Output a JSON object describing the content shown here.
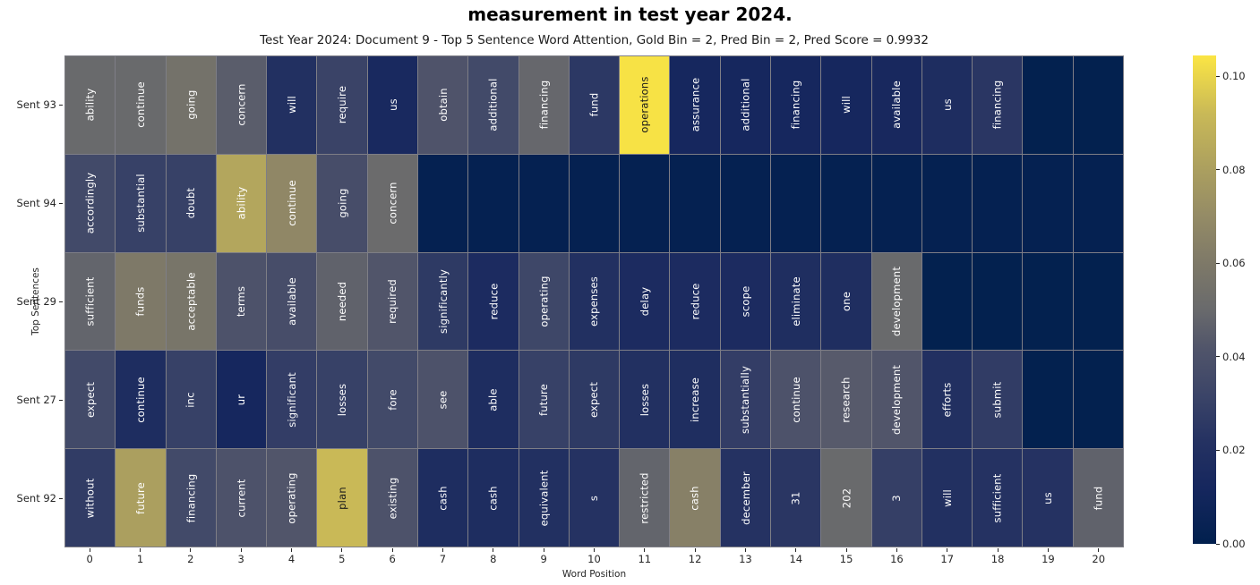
{
  "header": {
    "caption": "measurement in test year 2024.",
    "chart_title": "Test Year 2024: Document 9 - Top 5 Sentence Word Attention, Gold Bin = 2, Pred Bin = 2, Pred Score = 0.9932"
  },
  "chart_data": {
    "type": "heatmap",
    "title": "Test Year 2024: Document 9 - Top 5 Sentence Word Attention, Gold Bin = 2, Pred Bin = 2, Pred Score = 0.9932",
    "xlabel": "Word Position",
    "ylabel": "Top Sentences",
    "x_ticks": [
      "0",
      "1",
      "2",
      "3",
      "4",
      "5",
      "6",
      "7",
      "8",
      "9",
      "10",
      "11",
      "12",
      "13",
      "14",
      "15",
      "16",
      "17",
      "18",
      "19",
      "20"
    ],
    "y_tick_labels": [
      "Sent 93",
      "Sent 94",
      "Sent 29",
      "Sent 27",
      "Sent 92"
    ],
    "vmin": 0.0,
    "vmax": 0.105,
    "dark_text_threshold": 0.088,
    "grid_line_color": "#7e7e86",
    "colormap": {
      "name": "cividis",
      "stops": [
        [
          0.0,
          "#01204e"
        ],
        [
          0.012,
          "#16275e"
        ],
        [
          0.022,
          "#253262"
        ],
        [
          0.032,
          "#3c4568"
        ],
        [
          0.042,
          "#51556a"
        ],
        [
          0.05,
          "#696a6c"
        ],
        [
          0.06,
          "#7e7968"
        ],
        [
          0.07,
          "#948b66"
        ],
        [
          0.08,
          "#ab9f5f"
        ],
        [
          0.092,
          "#c9b957"
        ],
        [
          0.105,
          "#fbe544"
        ]
      ]
    },
    "colorbar": {
      "vmax_display": 0.1044,
      "ticks": [
        0.0,
        0.02,
        0.04,
        0.06,
        0.08,
        0.1
      ],
      "tick_labels": [
        "0.00",
        "0.02",
        "0.04",
        "0.06",
        "0.08",
        "0.10"
      ]
    },
    "rows": [
      {
        "label": "Sent 93",
        "cells": [
          {
            "w": "ability",
            "v": 0.05
          },
          {
            "w": "continue",
            "v": 0.05
          },
          {
            "w": "going",
            "v": 0.055
          },
          {
            "w": "concern",
            "v": 0.045
          },
          {
            "w": "will",
            "v": 0.02
          },
          {
            "w": "require",
            "v": 0.031
          },
          {
            "w": "us",
            "v": 0.014
          },
          {
            "w": "obtain",
            "v": 0.041
          },
          {
            "w": "additional",
            "v": 0.035
          },
          {
            "w": "financing",
            "v": 0.049
          },
          {
            "w": "fund",
            "v": 0.025
          },
          {
            "w": "operations",
            "v": 0.104
          },
          {
            "w": "assurance",
            "v": 0.012
          },
          {
            "w": "additional",
            "v": 0.012
          },
          {
            "w": "financing",
            "v": 0.012
          },
          {
            "w": "will",
            "v": 0.012
          },
          {
            "w": "available",
            "v": 0.013
          },
          {
            "w": "us",
            "v": 0.017
          },
          {
            "w": "financing",
            "v": 0.024
          },
          {
            "w": "",
            "v": 0.001
          },
          {
            "w": "",
            "v": 0.001
          }
        ]
      },
      {
        "label": "Sent 94",
        "cells": [
          {
            "w": "accordingly",
            "v": 0.035
          },
          {
            "w": "substantial",
            "v": 0.03
          },
          {
            "w": "doubt",
            "v": 0.03
          },
          {
            "w": "ability",
            "v": 0.083
          },
          {
            "w": "continue",
            "v": 0.068
          },
          {
            "w": "going",
            "v": 0.037
          },
          {
            "w": "concern",
            "v": 0.051
          },
          {
            "w": "",
            "v": 0.002
          },
          {
            "w": "",
            "v": 0.002
          },
          {
            "w": "",
            "v": 0.002
          },
          {
            "w": "",
            "v": 0.002
          },
          {
            "w": "",
            "v": 0.002
          },
          {
            "w": "",
            "v": 0.002
          },
          {
            "w": "",
            "v": 0.002
          },
          {
            "w": "",
            "v": 0.002
          },
          {
            "w": "",
            "v": 0.002
          },
          {
            "w": "",
            "v": 0.002
          },
          {
            "w": "",
            "v": 0.002
          },
          {
            "w": "",
            "v": 0.002
          },
          {
            "w": "",
            "v": 0.002
          },
          {
            "w": "",
            "v": 0.002
          }
        ]
      },
      {
        "label": "Sent 29",
        "cells": [
          {
            "w": "sufficient",
            "v": 0.048
          },
          {
            "w": "funds",
            "v": 0.06
          },
          {
            "w": "acceptable",
            "v": 0.057
          },
          {
            "w": "terms",
            "v": 0.04
          },
          {
            "w": "available",
            "v": 0.037
          },
          {
            "w": "needed",
            "v": 0.047
          },
          {
            "w": "required",
            "v": 0.042
          },
          {
            "w": "significantly",
            "v": 0.026
          },
          {
            "w": "reduce",
            "v": 0.016
          },
          {
            "w": "operating",
            "v": 0.033
          },
          {
            "w": "expenses",
            "v": 0.02
          },
          {
            "w": "delay",
            "v": 0.016
          },
          {
            "w": "reduce",
            "v": 0.016
          },
          {
            "w": "scope",
            "v": 0.016
          },
          {
            "w": "eliminate",
            "v": 0.018
          },
          {
            "w": "one",
            "v": 0.018
          },
          {
            "w": "development",
            "v": 0.05
          },
          {
            "w": "",
            "v": 0.001
          },
          {
            "w": "",
            "v": 0.001
          },
          {
            "w": "",
            "v": 0.001
          },
          {
            "w": "",
            "v": 0.001
          }
        ]
      },
      {
        "label": "Sent 27",
        "cells": [
          {
            "w": "expect",
            "v": 0.035
          },
          {
            "w": "continue",
            "v": 0.017
          },
          {
            "w": "inc",
            "v": 0.03
          },
          {
            "w": "ur",
            "v": 0.012
          },
          {
            "w": "significant",
            "v": 0.028
          },
          {
            "w": "losses",
            "v": 0.03
          },
          {
            "w": "fore",
            "v": 0.035
          },
          {
            "w": "see",
            "v": 0.04
          },
          {
            "w": "able",
            "v": 0.017
          },
          {
            "w": "future",
            "v": 0.03
          },
          {
            "w": "expect",
            "v": 0.026
          },
          {
            "w": "losses",
            "v": 0.02
          },
          {
            "w": "increase",
            "v": 0.018
          },
          {
            "w": "substantially",
            "v": 0.028
          },
          {
            "w": "continue",
            "v": 0.04
          },
          {
            "w": "research",
            "v": 0.044
          },
          {
            "w": "development",
            "v": 0.042
          },
          {
            "w": "efforts",
            "v": 0.02
          },
          {
            "w": "submit",
            "v": 0.027
          },
          {
            "w": "",
            "v": 0.001
          },
          {
            "w": "",
            "v": 0.001
          }
        ]
      },
      {
        "label": "Sent 92",
        "cells": [
          {
            "w": "without",
            "v": 0.027
          },
          {
            "w": "future",
            "v": 0.08
          },
          {
            "w": "financing",
            "v": 0.035
          },
          {
            "w": "current",
            "v": 0.04
          },
          {
            "w": "operating",
            "v": 0.042
          },
          {
            "w": "plan",
            "v": 0.092
          },
          {
            "w": "existing",
            "v": 0.04
          },
          {
            "w": "cash",
            "v": 0.017
          },
          {
            "w": "cash",
            "v": 0.017
          },
          {
            "w": "equivalent",
            "v": 0.02
          },
          {
            "w": "s",
            "v": 0.022
          },
          {
            "w": "restricted",
            "v": 0.048
          },
          {
            "w": "cash",
            "v": 0.064
          },
          {
            "w": "december",
            "v": 0.022
          },
          {
            "w": "31",
            "v": 0.024
          },
          {
            "w": "202",
            "v": 0.05
          },
          {
            "w": "3",
            "v": 0.029
          },
          {
            "w": "will",
            "v": 0.02
          },
          {
            "w": "sufficient",
            "v": 0.022
          },
          {
            "w": "us",
            "v": 0.022
          },
          {
            "w": "fund",
            "v": 0.047
          }
        ]
      }
    ]
  }
}
